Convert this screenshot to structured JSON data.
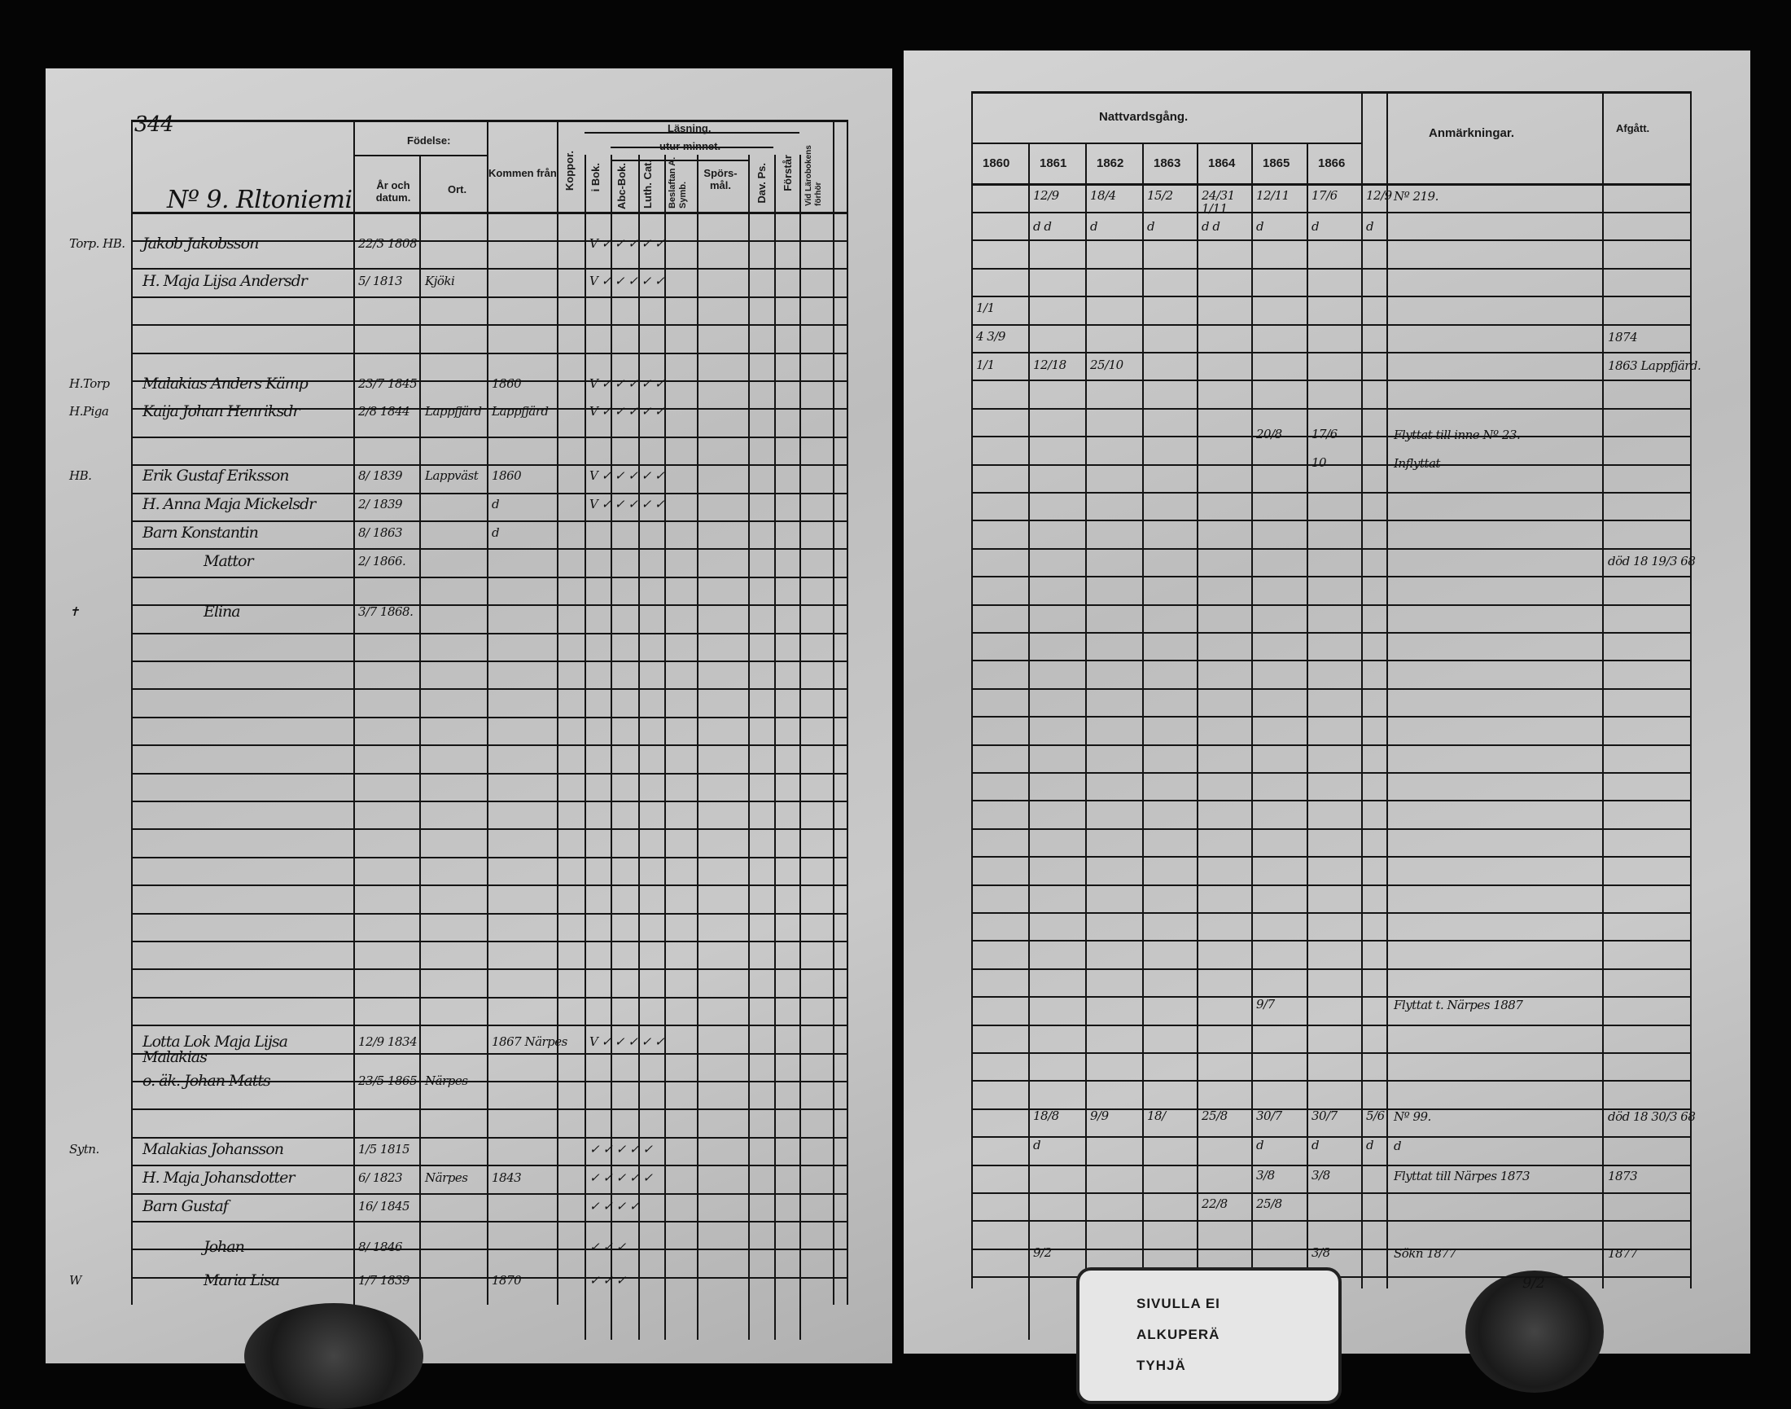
{
  "left_page": {
    "page_number": "344",
    "farm_title": "Nº 9. Rltoniemi",
    "headers": {
      "birth": "Födelse:",
      "birth_date": "År och datum.",
      "birth_place": "Ort.",
      "came_from": "Kommen från",
      "smallpox": "Koppor.",
      "reading": "Läsning.",
      "by_heart": "utur minnet.",
      "in_book": "i Bok.",
      "abc_book": "Abc-Bok.",
      "luth_cat": "Luth. Cat.",
      "symb": "Beslaftan A. Symb.",
      "questions": "Spörs-mål.",
      "psalms": "Dav. Ps.",
      "understands": "Förstår",
      "catechism": "Vid Lärobokens förhör"
    },
    "entries": [
      {
        "title": "Torp. HB.",
        "name": "Jakob Jakobsson",
        "birth": "22/3 1808",
        "place": "",
        "from": "",
        "marks": "V  ✓  ✓  ✓  ✓  ✓"
      },
      {
        "title": "",
        "name": "H. Maja Lijsa Andersdr",
        "birth": "5/ 1813",
        "place": "Kjöki",
        "from": "",
        "marks": "V  ✓  ✓  ✓  ✓  ✓"
      },
      {
        "title": "H.Torp",
        "name": "Malakias Anders Kämp",
        "birth": "23/7 1845",
        "place": "",
        "from": "1860",
        "marks": "V  ✓  ✓  ✓  ✓  ✓"
      },
      {
        "title": "H.Piga",
        "name": "Kaija Johan Henriksdr",
        "birth": "2/8 1844",
        "place": "Lappfjärd",
        "from": "Lappfjärd",
        "marks": "V  ✓  ✓  ✓  ✓  ✓"
      },
      {
        "title": "HB.",
        "name": "Erik Gustaf Eriksson",
        "birth": "8/ 1839",
        "place": "Lappväst",
        "from": "1860",
        "marks": "V  ✓  ✓  ✓  ✓  ✓"
      },
      {
        "title": "",
        "name": "H. Anna Maja Mickelsdr",
        "birth": "2/ 1839",
        "place": "",
        "from": "d",
        "marks": "V  ✓  ✓  ✓  ✓  ✓"
      },
      {
        "title": "",
        "name": "Barn Konstantin",
        "birth": "8/ 1863",
        "place": "",
        "from": "d",
        "marks": ""
      },
      {
        "title": "",
        "name": "Mattor",
        "birth": "2/ 1866.",
        "place": "",
        "from": "",
        "marks": ""
      },
      {
        "title": "✝",
        "name": "Elina",
        "birth": "3/7 1868.",
        "place": "",
        "from": "",
        "marks": ""
      }
    ],
    "lower_entries": [
      {
        "title": "",
        "name": "Lotta Lok Maja Lijsa Malakias",
        "birth": "12/9 1834",
        "place": "",
        "from": "1867 Närpes",
        "marks": "V  ✓  ✓  ✓  ✓  ✓"
      },
      {
        "title": "",
        "name": "o. äk. Johan Matts",
        "birth": "23/5 1865",
        "place": "Närpes",
        "from": "",
        "marks": ""
      },
      {
        "title": "Sytn.",
        "name": "Malakias Johansson",
        "birth": "1/5 1815",
        "place": "",
        "from": "",
        "marks": "✓  ✓  ✓  ✓  ✓"
      },
      {
        "title": "",
        "name": "H. Maja Johansdotter",
        "birth": "6/ 1823",
        "place": "Närpes",
        "from": "1843",
        "marks": "✓  ✓  ✓  ✓  ✓"
      },
      {
        "title": "",
        "name": "Barn Gustaf",
        "birth": "16/ 1845",
        "place": "",
        "from": "",
        "marks": "✓  ✓  ✓  ✓"
      },
      {
        "title": "",
        "name": "Johan",
        "birth": "8/ 1846",
        "place": "",
        "from": "",
        "marks": "✓  ✓  ✓"
      },
      {
        "title": "W",
        "name": "Maria Lisa",
        "birth": "1/7 1839",
        "place": "",
        "from": "1870",
        "marks": "✓  ✓  ✓"
      }
    ]
  },
  "right_page": {
    "headers": {
      "communion": "Nattvardsgång.",
      "years": [
        "1860",
        "1861",
        "1862",
        "1863",
        "1864",
        "1865",
        "1866"
      ],
      "remarks": "Anmärkningar.",
      "departed": "Afgått."
    },
    "rows": [
      {
        "cells": [
          "",
          "12/9",
          "18/4",
          "15/2",
          "24/31 1/11",
          "12/11",
          "17/6",
          "12/9"
        ],
        "remark": "Nº 219.",
        "departed": ""
      },
      {
        "cells": [
          "",
          "d d",
          "d",
          "d",
          "d d",
          "d",
          "d",
          "d"
        ],
        "remark": "",
        "departed": ""
      },
      {
        "cells": [
          "1/1",
          "",
          "",
          "",
          "",
          "",
          "",
          ""
        ],
        "remark": "",
        "departed": ""
      },
      {
        "cells": [
          "4 3/9",
          "",
          "",
          "",
          "",
          "",
          "",
          ""
        ],
        "remark": "",
        "departed": "1874"
      },
      {
        "cells": [
          "1/1",
          "12/18",
          "25/10",
          "",
          "",
          "",
          "",
          ""
        ],
        "remark": "",
        "departed": "1863 Lappfjärd."
      },
      {
        "cells": [
          "",
          "",
          "",
          "",
          "",
          "20/8",
          "17/6",
          ""
        ],
        "remark": "Flyttat till inne Nº 23.",
        "departed": ""
      },
      {
        "cells": [
          "",
          "",
          "",
          "",
          "",
          "",
          "10",
          ""
        ],
        "remark": "Inflyttat",
        "departed": ""
      },
      {
        "cells": [
          "",
          "",
          "",
          "",
          "",
          "",
          "",
          ""
        ],
        "remark": "",
        "departed": "död 18 19/3 68"
      }
    ],
    "lower_rows": [
      {
        "cells": [
          "",
          "",
          "",
          "",
          "",
          "9/7",
          "",
          ""
        ],
        "remark": "Flyttat t. Närpes 1887",
        "departed": ""
      },
      {
        "cells": [
          "",
          "18/8",
          "9/9",
          "18/",
          "25/8",
          "30/7",
          "30/7",
          "5/6"
        ],
        "remark": "Nº 99.",
        "departed": "död 18 30/3 68"
      },
      {
        "cells": [
          "",
          "d",
          "",
          "",
          "",
          "d",
          "d",
          "d"
        ],
        "remark": "d",
        "departed": ""
      },
      {
        "cells": [
          "",
          "",
          "",
          "",
          "",
          "3/8",
          "3/8",
          ""
        ],
        "remark": "Flyttat till Närpes 1873",
        "departed": "1873"
      },
      {
        "cells": [
          "",
          "",
          "",
          "",
          "22/8",
          "25/8",
          "",
          ""
        ],
        "remark": "",
        "departed": ""
      },
      {
        "cells": [
          "",
          "9/2",
          "",
          "",
          "",
          "",
          "3/8",
          ""
        ],
        "remark": "Sökn 1877",
        "departed": "1877"
      }
    ],
    "page_mark": "9/2",
    "stamp_lines": [
      "SIVULLA EI",
      "ALKUPERÄ",
      "TYHJÄ"
    ]
  }
}
